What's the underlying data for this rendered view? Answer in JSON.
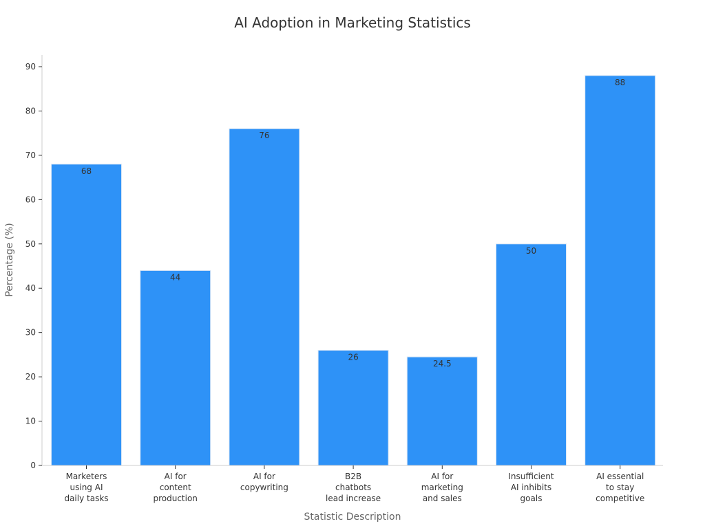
{
  "chart_data": {
    "type": "bar",
    "title": "AI Adoption in Marketing Statistics",
    "xlabel": "Statistic Description",
    "ylabel": "Percentage (%)",
    "ylim": [
      0,
      92
    ],
    "yticks": [
      0,
      10,
      20,
      30,
      40,
      50,
      60,
      70,
      80,
      90
    ],
    "categories": [
      [
        "Marketers",
        "using AI",
        "daily tasks"
      ],
      [
        "AI for",
        "content",
        "production"
      ],
      [
        "AI for",
        "copywriting"
      ],
      [
        "B2B",
        "chatbots",
        "lead increase"
      ],
      [
        "AI for",
        "marketing",
        "and sales"
      ],
      [
        "Insufficient",
        "AI inhibits",
        "goals"
      ],
      [
        "AI essential",
        "to stay",
        "competitive"
      ]
    ],
    "values": [
      68,
      44,
      76,
      26,
      24.5,
      50,
      88
    ],
    "value_labels": [
      "68",
      "44",
      "76",
      "26",
      "24.5",
      "50",
      "88"
    ],
    "bar_color": "#2e92f7",
    "bar_edge_color": "#d9e6f5",
    "grid": false,
    "legend": "none"
  }
}
